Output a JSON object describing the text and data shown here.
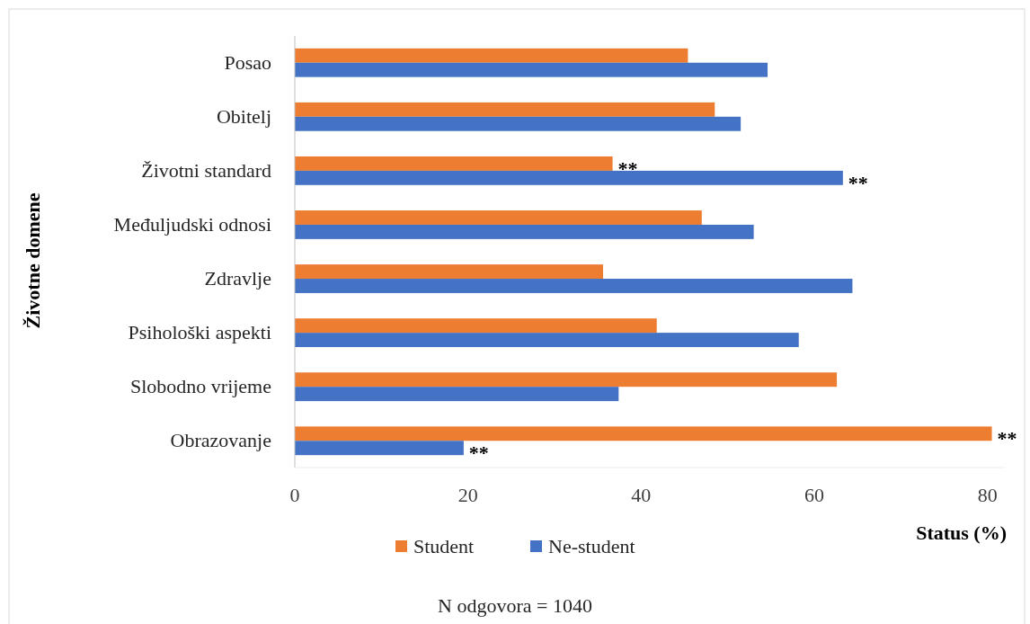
{
  "chart_data": {
    "type": "bar",
    "orientation": "horizontal",
    "xlabel": "Status (%)",
    "ylabel": "Životne domene",
    "categories": [
      "Posao",
      "Obitelj",
      "Životni standard",
      "Međuljudski odnosi",
      "Zdravlje",
      "Psihološki aspekti",
      "Slobodno vrijeme",
      "Obrazovanje"
    ],
    "series": [
      {
        "name": "Student",
        "color": "#ed7d31",
        "values": [
          45.4,
          48.5,
          36.7,
          47.0,
          35.6,
          41.8,
          62.6,
          80.5
        ]
      },
      {
        "name": "Ne-student",
        "color": "#4472c4",
        "values": [
          54.6,
          51.5,
          63.3,
          53.0,
          64.4,
          58.2,
          37.4,
          19.5
        ]
      }
    ],
    "xlim": [
      0,
      82
    ],
    "xticks": [
      0,
      20,
      40,
      60,
      80
    ],
    "grid": false,
    "legend": "bottom",
    "annotations": [
      {
        "text": "**",
        "x": 36.7,
        "y": "Životni standard"
      },
      {
        "text": "**",
        "x": 63.3,
        "y": "Životni standard"
      },
      {
        "text": "**",
        "x": 80.5,
        "y": "Obrazovanje"
      },
      {
        "text": "**",
        "x": 19.5,
        "y": "Obrazovanje"
      },
      "N odgovora = 1040"
    ]
  }
}
